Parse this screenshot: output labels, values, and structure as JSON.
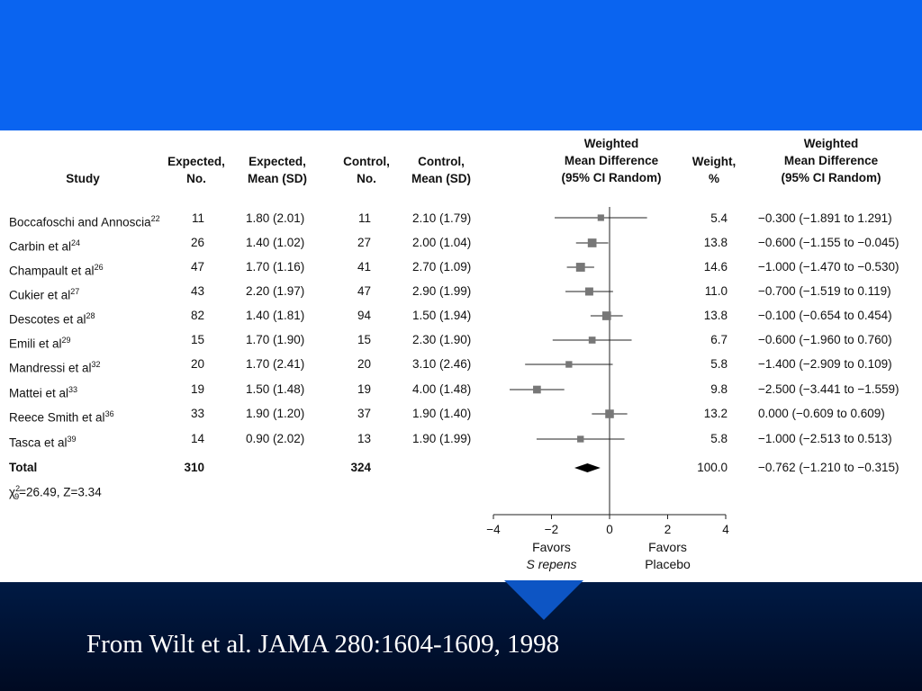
{
  "slide": {
    "citation": "From Wilt et al. JAMA 280:1604-1609, 1998",
    "colors": {
      "top_band": "#0a64f0",
      "bottom_band": "#001a44",
      "arrow": "#0d55c4"
    }
  },
  "headers": {
    "study": "Study",
    "exp_n": [
      "Expected,",
      "No."
    ],
    "exp_mean": [
      "Expected,",
      "Mean (SD)"
    ],
    "ctl_n": [
      "Control,",
      "No."
    ],
    "ctl_mean": [
      "Control,",
      "Mean (SD)"
    ],
    "wmd_plot": [
      "Weighted",
      "Mean Difference",
      "(95% CI Random)"
    ],
    "weight": [
      "Weight,",
      "%"
    ],
    "wmd": [
      "Weighted",
      "Mean Difference",
      "(95% CI Random)"
    ]
  },
  "rows": [
    {
      "study": "Boccafoschi and Annoscia",
      "ref": "22",
      "exp_n": "11",
      "exp_mean": "1.80 (2.01)",
      "ctl_n": "11",
      "ctl_mean": "2.10 (1.79)",
      "weight": "5.4",
      "wmd": "−0.300 (−1.891 to 1.291)"
    },
    {
      "study": "Carbin et al",
      "ref": "24",
      "exp_n": "26",
      "exp_mean": "1.40 (1.02)",
      "ctl_n": "27",
      "ctl_mean": "2.00 (1.04)",
      "weight": "13.8",
      "wmd": "−0.600 (−1.155 to −0.045)"
    },
    {
      "study": "Champault et al",
      "ref": "26",
      "exp_n": "47",
      "exp_mean": "1.70 (1.16)",
      "ctl_n": "41",
      "ctl_mean": "2.70 (1.09)",
      "weight": "14.6",
      "wmd": "−1.000 (−1.470 to −0.530)"
    },
    {
      "study": "Cukier et al",
      "ref": "27",
      "exp_n": "43",
      "exp_mean": "2.20 (1.97)",
      "ctl_n": "47",
      "ctl_mean": "2.90 (1.99)",
      "weight": "11.0",
      "wmd": "−0.700 (−1.519 to 0.119)"
    },
    {
      "study": "Descotes et al",
      "ref": "28",
      "exp_n": "82",
      "exp_mean": "1.40 (1.81)",
      "ctl_n": "94",
      "ctl_mean": "1.50 (1.94)",
      "weight": "13.8",
      "wmd": "−0.100 (−0.654 to 0.454)"
    },
    {
      "study": "Emili et al",
      "ref": "29",
      "exp_n": "15",
      "exp_mean": "1.70 (1.90)",
      "ctl_n": "15",
      "ctl_mean": "2.30 (1.90)",
      "weight": "6.7",
      "wmd": "−0.600 (−1.960 to 0.760)"
    },
    {
      "study": "Mandressi et al",
      "ref": "32",
      "exp_n": "20",
      "exp_mean": "1.70 (2.41)",
      "ctl_n": "20",
      "ctl_mean": "3.10 (2.46)",
      "weight": "5.8",
      "wmd": "−1.400 (−2.909 to 0.109)"
    },
    {
      "study": "Mattei et al",
      "ref": "33",
      "exp_n": "19",
      "exp_mean": "1.50 (1.48)",
      "ctl_n": "19",
      "ctl_mean": "4.00 (1.48)",
      "weight": "9.8",
      "wmd": "−2.500 (−3.441 to −1.559)"
    },
    {
      "study": "Reece Smith et al",
      "ref": "36",
      "exp_n": "33",
      "exp_mean": "1.90 (1.20)",
      "ctl_n": "37",
      "ctl_mean": "1.90 (1.40)",
      "weight": "13.2",
      "wmd": "0.000 (−0.609 to 0.609)"
    },
    {
      "study": "Tasca et al",
      "ref": "39",
      "exp_n": "14",
      "exp_mean": "0.90 (2.02)",
      "ctl_n": "13",
      "ctl_mean": "1.90 (1.99)",
      "weight": "5.8",
      "wmd": "−1.000 (−2.513 to 0.513)"
    }
  ],
  "total": {
    "label": "Total",
    "exp_n": "310",
    "ctl_n": "324",
    "weight": "100.0",
    "wmd": "−0.762 (−1.210 to −0.315)"
  },
  "heterogeneity": {
    "chi": "χ",
    "sup": "2",
    "sub": "9",
    "rest": "=26.49, Z=3.34"
  },
  "axis": {
    "favors_left": [
      "Favors",
      "S repens"
    ],
    "favors_right": [
      "Favors",
      "Placebo"
    ]
  },
  "chart_data": {
    "type": "forest",
    "xlim": [
      -4,
      4
    ],
    "ticks": [
      -4,
      -2,
      0,
      2,
      4
    ],
    "tick_labels": [
      "−4",
      "−2",
      "0",
      "2",
      "4"
    ],
    "reference_line": 0,
    "studies": [
      {
        "name": "Boccafoschi and Annoscia",
        "mean": -0.3,
        "lo": -1.891,
        "hi": 1.291,
        "weight": 5.4
      },
      {
        "name": "Carbin et al",
        "mean": -0.6,
        "lo": -1.155,
        "hi": -0.045,
        "weight": 13.8
      },
      {
        "name": "Champault et al",
        "mean": -1.0,
        "lo": -1.47,
        "hi": -0.53,
        "weight": 14.6
      },
      {
        "name": "Cukier et al",
        "mean": -0.7,
        "lo": -1.519,
        "hi": 0.119,
        "weight": 11.0
      },
      {
        "name": "Descotes et al",
        "mean": -0.1,
        "lo": -0.654,
        "hi": 0.454,
        "weight": 13.8
      },
      {
        "name": "Emili et al",
        "mean": -0.6,
        "lo": -1.96,
        "hi": 0.76,
        "weight": 6.7
      },
      {
        "name": "Mandressi et al",
        "mean": -1.4,
        "lo": -2.909,
        "hi": 0.109,
        "weight": 5.8
      },
      {
        "name": "Mattei et al",
        "mean": -2.5,
        "lo": -3.441,
        "hi": -1.559,
        "weight": 9.8
      },
      {
        "name": "Reece Smith et al",
        "mean": 0.0,
        "lo": -0.609,
        "hi": 0.609,
        "weight": 13.2
      },
      {
        "name": "Tasca et al",
        "mean": -1.0,
        "lo": -2.513,
        "hi": 0.513,
        "weight": 5.8
      }
    ],
    "pooled": {
      "mean": -0.762,
      "lo": -1.21,
      "hi": -0.315,
      "weight": 100.0
    }
  }
}
